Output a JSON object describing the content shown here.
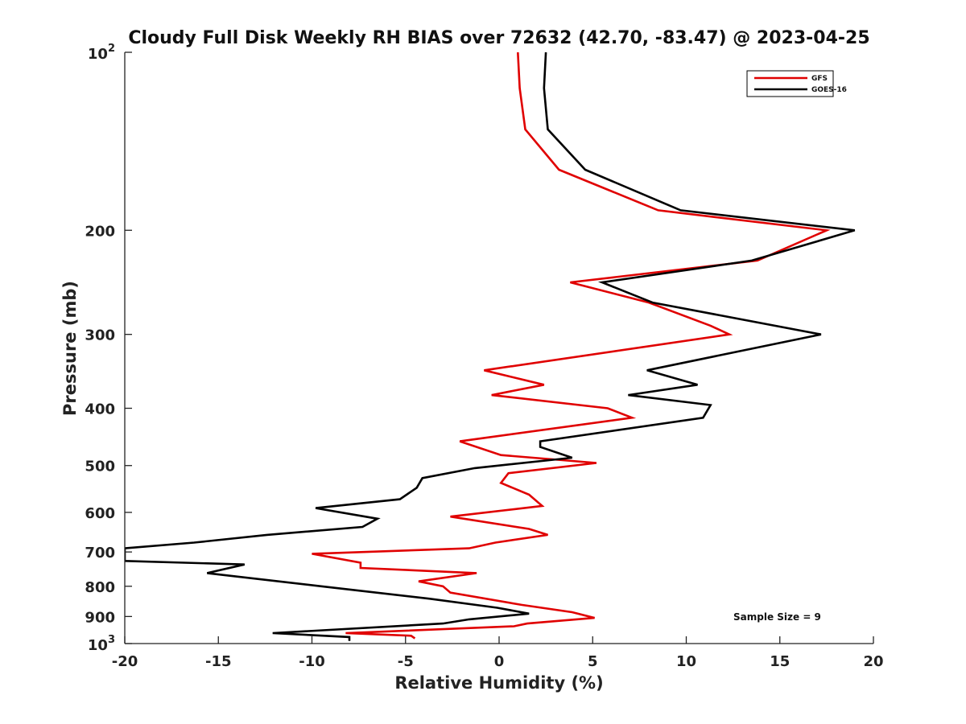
{
  "chart_data": {
    "type": "line",
    "title": "Cloudy Full Disk Weekly RH BIAS over 72632 (42.70, -83.47) @ 2023-04-25",
    "xlabel": "Relative Humidity (%)",
    "ylabel": "Pressure (mb)",
    "xlim": [
      -20,
      20
    ],
    "ylim": [
      1000,
      100
    ],
    "yscale": "log",
    "y_reversed": true,
    "grid": false,
    "legend_position": "top-right",
    "x_ticks": [
      "-20",
      "-15",
      "-10",
      "-5",
      "0",
      "5",
      "10",
      "15",
      "20"
    ],
    "y_ticks": [
      {
        "value": 100,
        "base": "10",
        "exp": "2"
      },
      {
        "value": 200,
        "label": "200"
      },
      {
        "value": 300,
        "label": "300"
      },
      {
        "value": 400,
        "label": "400"
      },
      {
        "value": 500,
        "label": "500"
      },
      {
        "value": 600,
        "label": "600"
      },
      {
        "value": 700,
        "label": "700"
      },
      {
        "value": 800,
        "label": "800"
      },
      {
        "value": 900,
        "label": "900"
      },
      {
        "value": 1000,
        "base": "10",
        "exp": "3"
      }
    ],
    "series": [
      {
        "name": "GFS",
        "color": "#e00000",
        "points": [
          [
            1.0,
            100
          ],
          [
            1.1,
            115
          ],
          [
            1.4,
            135
          ],
          [
            3.2,
            158
          ],
          [
            8.5,
            185
          ],
          [
            17.5,
            200
          ],
          [
            13.8,
            225
          ],
          [
            3.8,
            245
          ],
          [
            8.0,
            265
          ],
          [
            11.3,
            290
          ],
          [
            12.3,
            300
          ],
          [
            -0.8,
            345
          ],
          [
            2.4,
            365
          ],
          [
            -0.4,
            380
          ],
          [
            5.8,
            400
          ],
          [
            7.1,
            415
          ],
          [
            -2.1,
            455
          ],
          [
            0.1,
            480
          ],
          [
            5.2,
            495
          ],
          [
            0.5,
            515
          ],
          [
            0.1,
            535
          ],
          [
            1.6,
            560
          ],
          [
            2.3,
            585
          ],
          [
            -2.6,
            610
          ],
          [
            1.6,
            640
          ],
          [
            2.6,
            655
          ],
          [
            -0.2,
            675
          ],
          [
            -1.6,
            690
          ],
          [
            -10.0,
            705
          ],
          [
            -7.4,
            730
          ],
          [
            -7.4,
            745
          ],
          [
            -1.2,
            760
          ],
          [
            -4.3,
            785
          ],
          [
            -3.0,
            800
          ],
          [
            -2.6,
            820
          ],
          [
            1.2,
            860
          ],
          [
            3.9,
            885
          ],
          [
            5.1,
            905
          ],
          [
            1.5,
            925
          ],
          [
            0.8,
            935
          ],
          [
            -8.2,
            960
          ],
          [
            -4.7,
            970
          ],
          [
            -4.5,
            980
          ]
        ]
      },
      {
        "name": "GOES-16",
        "color": "#000000",
        "points": [
          [
            2.5,
            100
          ],
          [
            2.4,
            115
          ],
          [
            2.6,
            135
          ],
          [
            4.6,
            158
          ],
          [
            9.7,
            185
          ],
          [
            19.0,
            200
          ],
          [
            13.5,
            225
          ],
          [
            5.5,
            245
          ],
          [
            8.2,
            265
          ],
          [
            17.2,
            300
          ],
          [
            7.9,
            345
          ],
          [
            10.6,
            365
          ],
          [
            6.9,
            380
          ],
          [
            11.3,
            395
          ],
          [
            10.9,
            415
          ],
          [
            2.2,
            455
          ],
          [
            2.2,
            465
          ],
          [
            3.9,
            485
          ],
          [
            -1.3,
            505
          ],
          [
            -4.1,
            525
          ],
          [
            -4.4,
            545
          ],
          [
            -5.3,
            570
          ],
          [
            -9.8,
            590
          ],
          [
            -6.5,
            615
          ],
          [
            -7.3,
            635
          ],
          [
            -12.4,
            655
          ],
          [
            -16.3,
            675
          ],
          [
            -20.0,
            690
          ],
          [
            -20.0,
            725
          ],
          [
            -13.6,
            735
          ],
          [
            -15.6,
            760
          ],
          [
            -9.5,
            800
          ],
          [
            -3.7,
            840
          ],
          [
            -0.1,
            870
          ],
          [
            1.6,
            890
          ],
          [
            -1.6,
            910
          ],
          [
            -3.0,
            925
          ],
          [
            -12.1,
            960
          ],
          [
            -8.0,
            975
          ],
          [
            -8.0,
            990
          ]
        ]
      }
    ],
    "legend": [
      "GFS",
      "GOES-16"
    ],
    "annotation": "Sample Size = 9"
  }
}
